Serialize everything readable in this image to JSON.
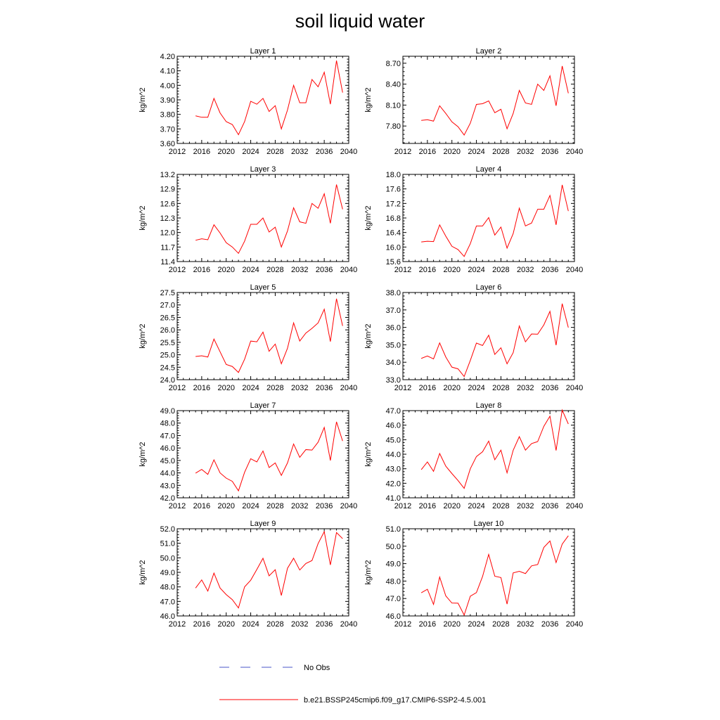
{
  "figure": {
    "title": "soil liquid water",
    "colors": {
      "series": "#ff0000",
      "obs": "#4a55c8",
      "axis": "#000000"
    }
  },
  "legend": {
    "obs_label": "No Obs",
    "model_label": "b.e21.BSSP245cmip6.f09_g17.CMIP6-SSP2-4.5.001"
  },
  "chart_data": [
    {
      "type": "line",
      "title": "Layer 1",
      "ylabel": "kg/m^2",
      "xlim": [
        2012,
        2040
      ],
      "ylim": [
        3.6,
        4.2
      ],
      "xticks": [
        "2012",
        "2016",
        "2020",
        "2024",
        "2028",
        "2032",
        "2036",
        "2040"
      ],
      "yticks": [
        "3.60",
        "3.70",
        "3.80",
        "3.90",
        "4.00",
        "4.10",
        "4.20"
      ],
      "series": [
        {
          "x": [
            2015,
            2016,
            2017,
            2018,
            2019,
            2020,
            2021,
            2022,
            2023,
            2024,
            2025,
            2026,
            2027,
            2028,
            2029,
            2030,
            2031,
            2032,
            2033,
            2034,
            2035,
            2036,
            2037,
            2038,
            2039
          ],
          "values": [
            3.79,
            3.78,
            3.78,
            3.91,
            3.81,
            3.75,
            3.73,
            3.66,
            3.75,
            3.89,
            3.87,
            3.91,
            3.82,
            3.86,
            3.7,
            3.83,
            4.0,
            3.88,
            3.88,
            4.04,
            3.99,
            4.09,
            3.87,
            4.17,
            3.95
          ]
        }
      ]
    },
    {
      "type": "line",
      "title": "Layer 2",
      "ylabel": "kg/m^2",
      "xlim": [
        2012,
        2040
      ],
      "ylim": [
        7.55,
        8.8
      ],
      "xticks": [
        "2012",
        "2016",
        "2020",
        "2024",
        "2028",
        "2032",
        "2036",
        "2040"
      ],
      "yticks": [
        "7.80",
        "8.10",
        "8.40",
        "8.70"
      ],
      "series": [
        {
          "x": [
            2015,
            2016,
            2017,
            2018,
            2019,
            2020,
            2021,
            2022,
            2023,
            2024,
            2025,
            2026,
            2027,
            2028,
            2029,
            2030,
            2031,
            2032,
            2033,
            2034,
            2035,
            2036,
            2037,
            2038,
            2039
          ],
          "values": [
            7.88,
            7.89,
            7.87,
            8.09,
            7.98,
            7.86,
            7.79,
            7.67,
            7.84,
            8.11,
            8.12,
            8.16,
            7.99,
            8.04,
            7.76,
            7.98,
            8.31,
            8.13,
            8.11,
            8.4,
            8.31,
            8.52,
            8.09,
            8.66,
            8.27
          ]
        }
      ]
    },
    {
      "type": "line",
      "title": "Layer 3",
      "ylabel": "kg/m^2",
      "xlim": [
        2012,
        2040
      ],
      "ylim": [
        11.4,
        13.2
      ],
      "xticks": [
        "2012",
        "2016",
        "2020",
        "2024",
        "2028",
        "2032",
        "2036",
        "2040"
      ],
      "yticks": [
        "11.4",
        "11.7",
        "12.0",
        "12.3",
        "12.6",
        "12.9",
        "13.2"
      ],
      "series": [
        {
          "x": [
            2015,
            2016,
            2017,
            2018,
            2019,
            2020,
            2021,
            2022,
            2023,
            2024,
            2025,
            2026,
            2027,
            2028,
            2029,
            2030,
            2031,
            2032,
            2033,
            2034,
            2035,
            2036,
            2037,
            2038,
            2039
          ],
          "values": [
            11.84,
            11.87,
            11.85,
            12.16,
            11.99,
            11.79,
            11.7,
            11.57,
            11.82,
            12.17,
            12.17,
            12.3,
            12.01,
            12.11,
            11.7,
            12.03,
            12.51,
            12.22,
            12.19,
            12.6,
            12.5,
            12.8,
            12.19,
            12.99,
            12.48
          ]
        }
      ]
    },
    {
      "type": "line",
      "title": "Layer 4",
      "ylabel": "kg/m^2",
      "xlim": [
        2012,
        2040
      ],
      "ylim": [
        15.6,
        18.0
      ],
      "xticks": [
        "2012",
        "2016",
        "2020",
        "2024",
        "2028",
        "2032",
        "2036",
        "2040"
      ],
      "yticks": [
        "15.6",
        "16.0",
        "16.4",
        "16.8",
        "17.2",
        "17.6",
        "18.0"
      ],
      "series": [
        {
          "x": [
            2015,
            2016,
            2017,
            2018,
            2019,
            2020,
            2021,
            2022,
            2023,
            2024,
            2025,
            2026,
            2027,
            2028,
            2029,
            2030,
            2031,
            2032,
            2033,
            2034,
            2035,
            2036,
            2037,
            2038,
            2039
          ],
          "values": [
            16.14,
            16.16,
            16.15,
            16.61,
            16.3,
            16.02,
            15.93,
            15.74,
            16.09,
            16.58,
            16.58,
            16.81,
            16.33,
            16.55,
            15.97,
            16.37,
            17.07,
            16.58,
            16.66,
            17.04,
            17.04,
            17.42,
            16.61,
            17.71,
            16.99
          ]
        }
      ]
    },
    {
      "type": "line",
      "title": "Layer 5",
      "ylabel": "kg/m^2",
      "xlim": [
        2012,
        2040
      ],
      "ylim": [
        24.0,
        27.5
      ],
      "xticks": [
        "2012",
        "2016",
        "2020",
        "2024",
        "2028",
        "2032",
        "2036",
        "2040"
      ],
      "yticks": [
        "24.0",
        "24.5",
        "25.0",
        "25.5",
        "26.0",
        "26.5",
        "27.0",
        "27.5"
      ],
      "series": [
        {
          "x": [
            2015,
            2016,
            2017,
            2018,
            2019,
            2020,
            2021,
            2022,
            2023,
            2024,
            2025,
            2026,
            2027,
            2028,
            2029,
            2030,
            2031,
            2032,
            2033,
            2034,
            2035,
            2036,
            2037,
            2038,
            2039
          ],
          "values": [
            24.93,
            24.96,
            24.91,
            25.63,
            25.12,
            24.61,
            24.53,
            24.29,
            24.82,
            25.55,
            25.52,
            25.91,
            25.14,
            25.43,
            24.64,
            25.26,
            26.28,
            25.55,
            25.87,
            26.06,
            26.28,
            26.83,
            25.53,
            27.25,
            26.16
          ]
        }
      ]
    },
    {
      "type": "line",
      "title": "Layer 6",
      "ylabel": "kg/m^2",
      "xlim": [
        2012,
        2040
      ],
      "ylim": [
        33.0,
        38.0
      ],
      "xticks": [
        "2012",
        "2016",
        "2020",
        "2024",
        "2028",
        "2032",
        "2036",
        "2040"
      ],
      "yticks": [
        "33.0",
        "34.0",
        "35.0",
        "36.0",
        "37.0",
        "38.0"
      ],
      "series": [
        {
          "x": [
            2015,
            2016,
            2017,
            2018,
            2019,
            2020,
            2021,
            2022,
            2023,
            2024,
            2025,
            2026,
            2027,
            2028,
            2029,
            2030,
            2031,
            2032,
            2033,
            2034,
            2035,
            2036,
            2037,
            2038,
            2039
          ],
          "values": [
            34.22,
            34.36,
            34.19,
            35.11,
            34.3,
            33.72,
            33.62,
            33.18,
            34.1,
            35.1,
            34.96,
            35.55,
            34.45,
            34.83,
            33.91,
            34.55,
            36.08,
            35.17,
            35.62,
            35.61,
            36.14,
            36.92,
            34.98,
            37.36,
            35.99
          ]
        }
      ]
    },
    {
      "type": "line",
      "title": "Layer 7",
      "ylabel": "kg/m^2",
      "xlim": [
        2012,
        2040
      ],
      "ylim": [
        42.0,
        49.0
      ],
      "xticks": [
        "2012",
        "2016",
        "2020",
        "2024",
        "2028",
        "2032",
        "2036",
        "2040"
      ],
      "yticks": [
        "42.0",
        "43.0",
        "44.0",
        "45.0",
        "46.0",
        "47.0",
        "48.0",
        "49.0"
      ],
      "series": [
        {
          "x": [
            2015,
            2016,
            2017,
            2018,
            2019,
            2020,
            2021,
            2022,
            2023,
            2024,
            2025,
            2026,
            2027,
            2028,
            2029,
            2030,
            2031,
            2032,
            2033,
            2034,
            2035,
            2036,
            2037,
            2038,
            2039
          ],
          "values": [
            43.98,
            44.28,
            43.88,
            45.05,
            44.0,
            43.58,
            43.32,
            42.56,
            44.05,
            45.14,
            44.88,
            45.76,
            44.43,
            44.8,
            43.8,
            44.8,
            46.32,
            45.25,
            45.87,
            45.83,
            46.47,
            47.65,
            45.0,
            48.1,
            46.56
          ]
        }
      ]
    },
    {
      "type": "line",
      "title": "Layer 8",
      "ylabel": "kg/m^2",
      "xlim": [
        2012,
        2040
      ],
      "ylim": [
        41.0,
        47.0
      ],
      "xticks": [
        "2012",
        "2016",
        "2020",
        "2024",
        "2028",
        "2032",
        "2036",
        "2040"
      ],
      "yticks": [
        "41.0",
        "42.0",
        "43.0",
        "44.0",
        "45.0",
        "46.0",
        "47.0"
      ],
      "series": [
        {
          "x": [
            2015,
            2016,
            2017,
            2018,
            2019,
            2020,
            2021,
            2022,
            2023,
            2024,
            2025,
            2026,
            2027,
            2028,
            2029,
            2030,
            2031,
            2032,
            2033,
            2034,
            2035,
            2036,
            2037,
            2038,
            2039
          ],
          "values": [
            42.94,
            43.47,
            42.82,
            44.05,
            43.18,
            42.67,
            42.19,
            41.65,
            43.0,
            43.84,
            44.17,
            44.9,
            43.62,
            44.28,
            42.72,
            44.27,
            45.21,
            44.28,
            44.73,
            44.87,
            45.92,
            46.62,
            44.26,
            47.04,
            46.08
          ]
        }
      ]
    },
    {
      "type": "line",
      "title": "Layer 9",
      "ylabel": "kg/m^2",
      "xlim": [
        2012,
        2040
      ],
      "ylim": [
        46.0,
        52.0
      ],
      "xticks": [
        "2012",
        "2016",
        "2020",
        "2024",
        "2028",
        "2032",
        "2036",
        "2040"
      ],
      "yticks": [
        "46.0",
        "47.0",
        "48.0",
        "49.0",
        "50.0",
        "51.0",
        "52.0"
      ],
      "series": [
        {
          "x": [
            2015,
            2016,
            2017,
            2018,
            2019,
            2020,
            2021,
            2022,
            2023,
            2024,
            2025,
            2026,
            2027,
            2028,
            2029,
            2030,
            2031,
            2032,
            2033,
            2034,
            2035,
            2036,
            2037,
            2038,
            2039
          ],
          "values": [
            47.92,
            48.48,
            47.71,
            48.95,
            47.92,
            47.47,
            47.12,
            46.55,
            48.0,
            48.46,
            49.2,
            49.97,
            48.76,
            49.18,
            47.41,
            49.28,
            49.97,
            49.16,
            49.61,
            49.81,
            50.98,
            51.8,
            49.51,
            51.74,
            51.32
          ]
        }
      ]
    },
    {
      "type": "line",
      "title": "Layer 10",
      "ylabel": "kg/m^2",
      "xlim": [
        2012,
        2040
      ],
      "ylim": [
        46.0,
        51.0
      ],
      "xticks": [
        "2012",
        "2016",
        "2020",
        "2024",
        "2028",
        "2032",
        "2036",
        "2040"
      ],
      "yticks": [
        "46.0",
        "47.0",
        "48.0",
        "49.0",
        "50.0",
        "51.0"
      ],
      "series": [
        {
          "x": [
            2015,
            2016,
            2017,
            2018,
            2019,
            2020,
            2021,
            2022,
            2023,
            2024,
            2025,
            2026,
            2027,
            2028,
            2029,
            2030,
            2031,
            2032,
            2033,
            2034,
            2035,
            2036,
            2037,
            2038,
            2039
          ],
          "values": [
            47.33,
            47.53,
            46.66,
            48.23,
            47.15,
            46.74,
            46.73,
            46.05,
            47.13,
            47.34,
            48.26,
            49.53,
            48.28,
            48.2,
            46.68,
            48.47,
            48.56,
            48.43,
            48.87,
            48.95,
            49.93,
            50.3,
            49.06,
            50.12,
            50.6
          ]
        }
      ]
    }
  ]
}
